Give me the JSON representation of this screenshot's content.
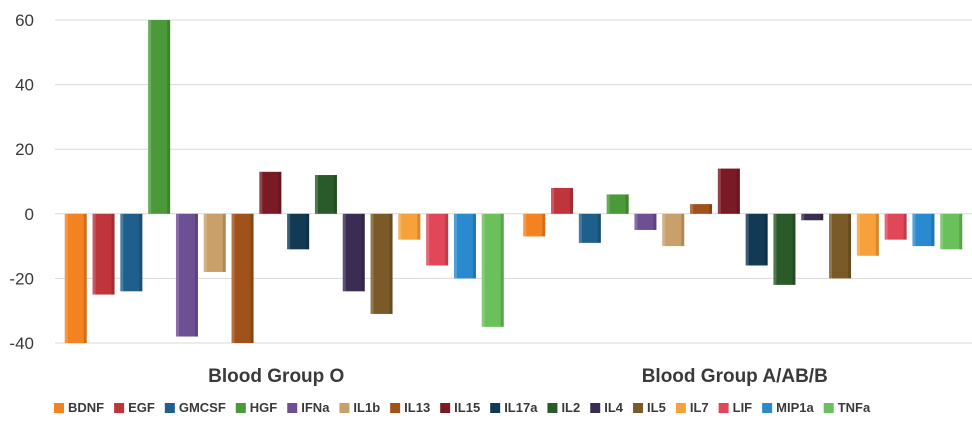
{
  "chart_data": {
    "type": "bar",
    "categories": [
      "Blood Group O",
      "Blood Group A/AB/B"
    ],
    "ylim": [
      -40,
      60
    ],
    "yticks": [
      60,
      40,
      20,
      0,
      -20,
      -40
    ],
    "grid": true,
    "legend_position": "bottom",
    "series": [
      {
        "name": "BDNF",
        "color": "#f58220",
        "values": [
          -40,
          -7
        ]
      },
      {
        "name": "EGF",
        "color": "#c0343c",
        "values": [
          -25,
          8
        ]
      },
      {
        "name": "GMCSF",
        "color": "#1f5f8b",
        "values": [
          -24,
          -9
        ]
      },
      {
        "name": "HGF",
        "color": "#4a9a3a",
        "values": [
          60,
          6
        ]
      },
      {
        "name": "IFNa",
        "color": "#6d4f94",
        "values": [
          -38,
          -5
        ]
      },
      {
        "name": "IL1b",
        "color": "#caa06a",
        "values": [
          -18,
          -10
        ]
      },
      {
        "name": "IL13",
        "color": "#a0521a",
        "values": [
          -40,
          3
        ]
      },
      {
        "name": "IL15",
        "color": "#7a1a25",
        "values": [
          13,
          14
        ]
      },
      {
        "name": "IL17a",
        "color": "#123a55",
        "values": [
          -11,
          -16
        ]
      },
      {
        "name": "IL2",
        "color": "#2a5a2a",
        "values": [
          12,
          -22
        ]
      },
      {
        "name": "IL4",
        "color": "#3a2c52",
        "values": [
          -24,
          -2
        ]
      },
      {
        "name": "IL5",
        "color": "#7a5a28",
        "values": [
          -31,
          -20
        ]
      },
      {
        "name": "IL7",
        "color": "#f7a13a",
        "values": [
          -8,
          -13
        ]
      },
      {
        "name": "LIF",
        "color": "#e0485a",
        "values": [
          -16,
          -8
        ]
      },
      {
        "name": "MIP1a",
        "color": "#2a8ad0",
        "values": [
          -20,
          -10
        ]
      },
      {
        "name": "TNFa",
        "color": "#6ac05a",
        "values": [
          -35,
          -11
        ]
      }
    ]
  }
}
